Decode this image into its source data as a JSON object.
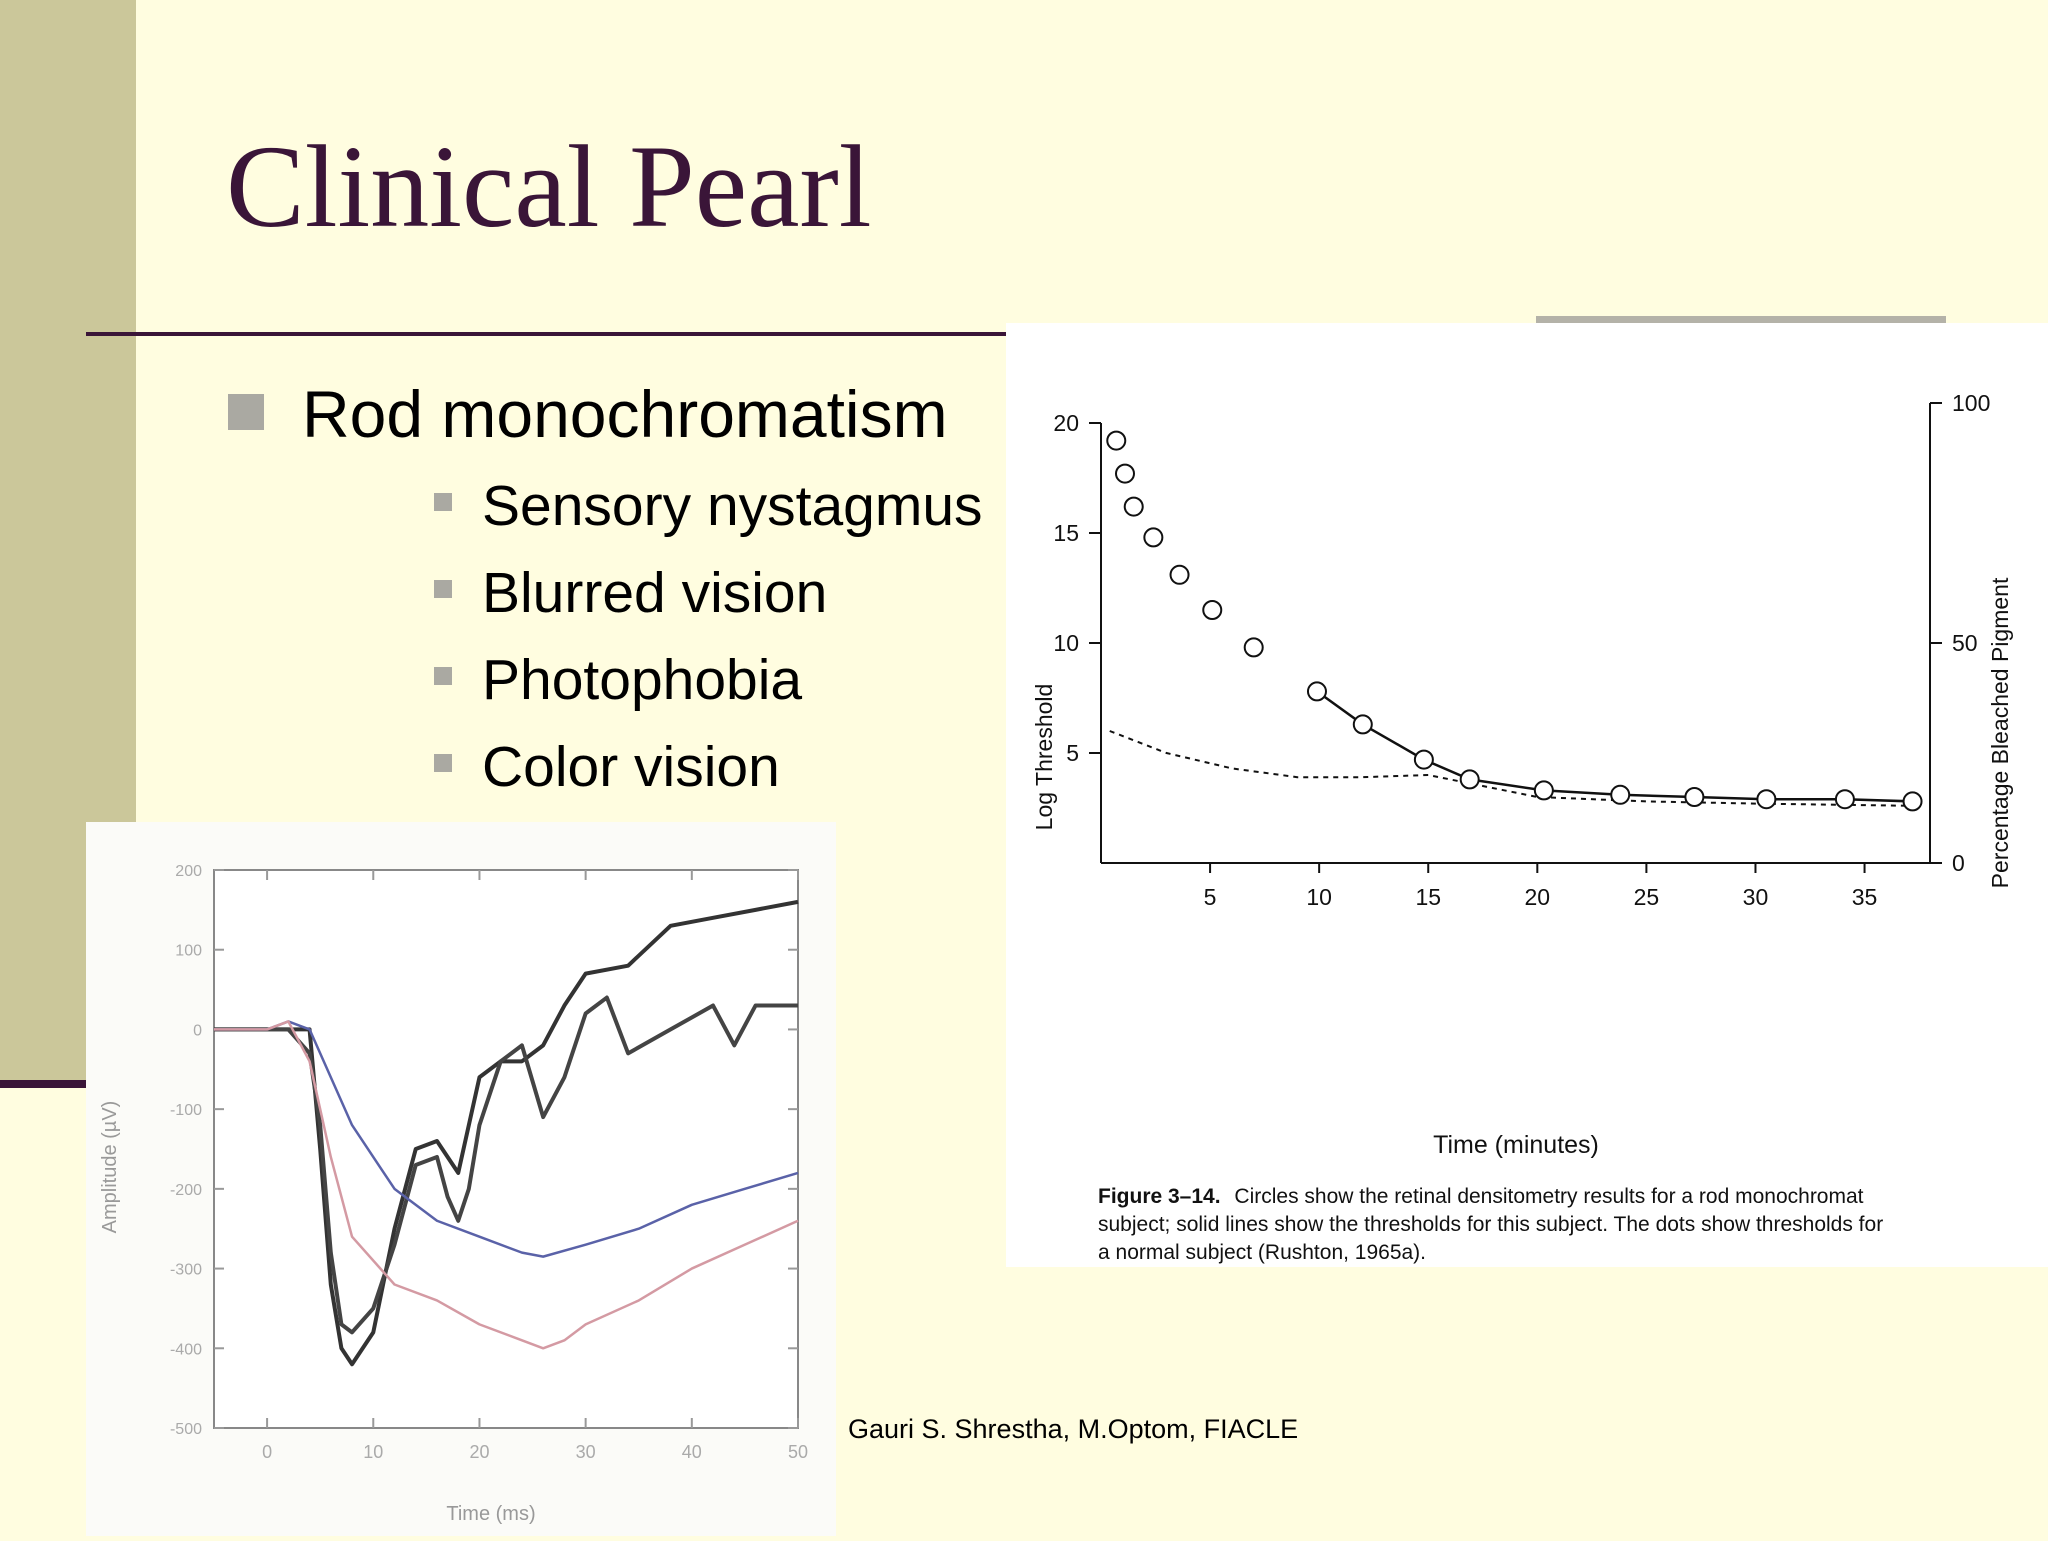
{
  "slide": {
    "title": "Clinical Pearl",
    "bullet": "Rod monochromatism",
    "sub_bullets": [
      "Sensory nystagmus",
      "Blurred vision",
      "Photophobia",
      "Color vision"
    ],
    "author": "Gauri S. Shrestha, M.Optom, FIACLE",
    "colors": {
      "background": "#fffde0",
      "sidebar": "#cbc79a",
      "title": "#3a1538",
      "bullet": "#aaa9a2"
    }
  },
  "chart_data": [
    {
      "type": "scatter",
      "xlabel": "Time (minutes)",
      "ylabel": "Log Threshold",
      "y2label": "Percentage Bleached Pigment",
      "xlim": [
        0,
        38
      ],
      "ylim": [
        0,
        20
      ],
      "y2lim": [
        0,
        100
      ],
      "x_ticks": [
        5,
        10,
        15,
        20,
        25,
        30,
        35
      ],
      "y_ticks": [
        5,
        10,
        15,
        20
      ],
      "y2_ticks": [
        0,
        50,
        100
      ],
      "caption_label": "Figure 3–14.",
      "caption_lines": [
        "Circles show the retinal densitometry results for a rod monochromat",
        "subject; solid lines show the thresholds for this subject. The dots show thresholds for",
        "a normal subject (Rushton, 1965a)."
      ],
      "series": [
        {
          "kind": "circles",
          "x": [
            0.7,
            1.1,
            1.5,
            2.4,
            3.6,
            5.1,
            7.0,
            9.9,
            12.0,
            14.8,
            16.9,
            20.3,
            23.8,
            27.2,
            30.5,
            34.1,
            37.2
          ],
          "y": [
            19.2,
            17.7,
            16.2,
            14.8,
            13.1,
            11.5,
            9.8,
            7.8,
            6.3,
            4.7,
            3.8,
            3.3,
            3.1,
            3.0,
            2.9,
            2.9,
            2.8
          ]
        },
        {
          "kind": "solid-line",
          "x": [
            9.9,
            12.0,
            14.8,
            16.9,
            20.3,
            23.8,
            27.2,
            30.5,
            34.1,
            37.2
          ],
          "y": [
            7.8,
            6.3,
            4.7,
            3.8,
            3.3,
            3.1,
            3.0,
            2.9,
            2.9,
            2.8
          ]
        },
        {
          "kind": "dotted-line",
          "x": [
            0.4,
            3,
            6,
            9,
            12,
            15,
            17,
            20,
            25,
            30,
            37.2
          ],
          "y": [
            6.0,
            5.0,
            4.3,
            3.9,
            3.9,
            4.0,
            3.6,
            3.0,
            2.8,
            2.7,
            2.6
          ]
        }
      ]
    },
    {
      "type": "line",
      "xlabel": "Time (ms)",
      "ylabel": "Amplitude (µV)",
      "xlim": [
        -5,
        50
      ],
      "ylim": [
        -500,
        200
      ],
      "x_ticks": [
        0,
        10,
        20,
        30,
        40,
        50
      ],
      "y_ticks": [
        200,
        100,
        0,
        -100,
        -200,
        -300,
        -400,
        -500
      ],
      "series": [
        {
          "color": "#333333",
          "x": [
            -5,
            0,
            2,
            4,
            5,
            6,
            7,
            8,
            10,
            12,
            14,
            16,
            18,
            20,
            22,
            24,
            26,
            28,
            30,
            34,
            38,
            42,
            46,
            50
          ],
          "y": [
            0,
            0,
            0,
            0,
            -150,
            -320,
            -400,
            -420,
            -380,
            -250,
            -150,
            -140,
            -180,
            -60,
            -40,
            -40,
            -20,
            30,
            70,
            80,
            130,
            140,
            150,
            160
          ]
        },
        {
          "color": "#444444",
          "x": [
            -5,
            0,
            2,
            4,
            5,
            6,
            7,
            8,
            10,
            12,
            14,
            16,
            17,
            18,
            19,
            20,
            22,
            24,
            26,
            28,
            30,
            32,
            34,
            38,
            42,
            44,
            46,
            50
          ],
          "y": [
            0,
            0,
            0,
            -30,
            -120,
            -280,
            -370,
            -380,
            -350,
            -270,
            -170,
            -160,
            -210,
            -240,
            -200,
            -120,
            -40,
            -20,
            -110,
            -60,
            20,
            40,
            -30,
            0,
            30,
            -20,
            30,
            30
          ]
        },
        {
          "color": "#5a62a8",
          "x": [
            -5,
            0,
            2,
            4,
            8,
            12,
            16,
            20,
            24,
            26,
            30,
            35,
            40,
            45,
            50
          ],
          "y": [
            0,
            0,
            10,
            0,
            -120,
            -200,
            -240,
            -260,
            -280,
            -285,
            -270,
            -250,
            -220,
            -200,
            -180
          ]
        },
        {
          "color": "#d49aa3",
          "x": [
            -5,
            0,
            2,
            4,
            6,
            8,
            12,
            16,
            20,
            24,
            26,
            28,
            30,
            35,
            40,
            45,
            50
          ],
          "y": [
            0,
            0,
            10,
            -40,
            -160,
            -260,
            -320,
            -340,
            -370,
            -390,
            -400,
            -390,
            -370,
            -340,
            -300,
            -270,
            -240
          ]
        }
      ]
    }
  ]
}
